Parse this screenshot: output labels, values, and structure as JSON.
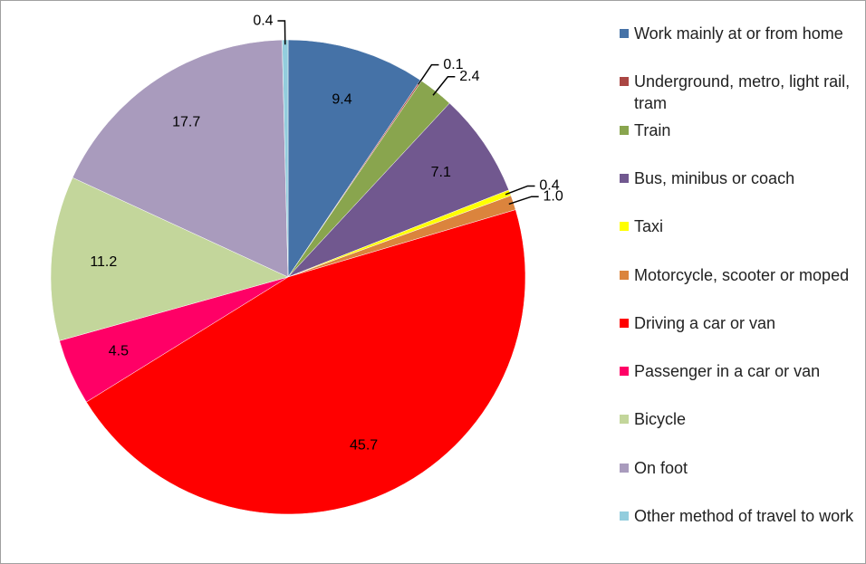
{
  "chart_data": {
    "type": "pie",
    "categories": [
      "Work mainly at or from home",
      "Underground, metro, light rail, tram",
      "Train",
      "Bus, minibus or coach",
      "Taxi",
      "Motorcycle, scooter or moped",
      "Driving a car or van",
      "Passenger in a car or van",
      "Bicycle",
      "On foot",
      "Other method of travel to work"
    ],
    "values": [
      9.4,
      0.1,
      2.4,
      7.1,
      0.4,
      1.0,
      45.7,
      4.5,
      11.2,
      17.7,
      0.4
    ],
    "value_labels": [
      "9.4",
      "0.1",
      "2.4",
      "7.1",
      "0.4",
      "1.0",
      "45.7",
      "4.5",
      "11.2",
      "17.7",
      "0.4"
    ],
    "colors": [
      "#4572a7",
      "#aa4643",
      "#89a54e",
      "#71588f",
      "#ffff00",
      "#db843d",
      "#ff0000",
      "#ff0066",
      "#c3d69b",
      "#a99bbd",
      "#93cddd"
    ],
    "legend": "right"
  }
}
